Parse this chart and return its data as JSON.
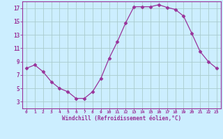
{
  "x": [
    0,
    1,
    2,
    3,
    4,
    5,
    6,
    7,
    8,
    9,
    10,
    11,
    12,
    13,
    14,
    15,
    16,
    17,
    18,
    19,
    20,
    21,
    22,
    23
  ],
  "y": [
    8.0,
    8.5,
    7.5,
    6.0,
    5.0,
    4.5,
    3.5,
    3.5,
    4.5,
    6.5,
    9.5,
    12.0,
    14.8,
    17.2,
    17.2,
    17.2,
    17.5,
    17.1,
    16.8,
    15.8,
    13.2,
    10.5,
    9.0,
    8.0
  ],
  "line_color": "#993399",
  "marker": "D",
  "marker_size": 2.5,
  "bg_color": "#cceeff",
  "grid_color": "#aacccc",
  "xlabel": "Windchill (Refroidissement éolien,°C)",
  "xlabel_color": "#993399",
  "tick_color": "#993399",
  "spine_color": "#993399",
  "ylim": [
    2,
    18
  ],
  "xlim": [
    -0.5,
    23.5
  ],
  "yticks": [
    3,
    5,
    7,
    9,
    11,
    13,
    15,
    17
  ],
  "xticks": [
    0,
    1,
    2,
    3,
    4,
    5,
    6,
    7,
    8,
    9,
    10,
    11,
    12,
    13,
    14,
    15,
    16,
    17,
    18,
    19,
    20,
    21,
    22,
    23
  ],
  "figsize": [
    3.2,
    2.0
  ],
  "dpi": 100
}
